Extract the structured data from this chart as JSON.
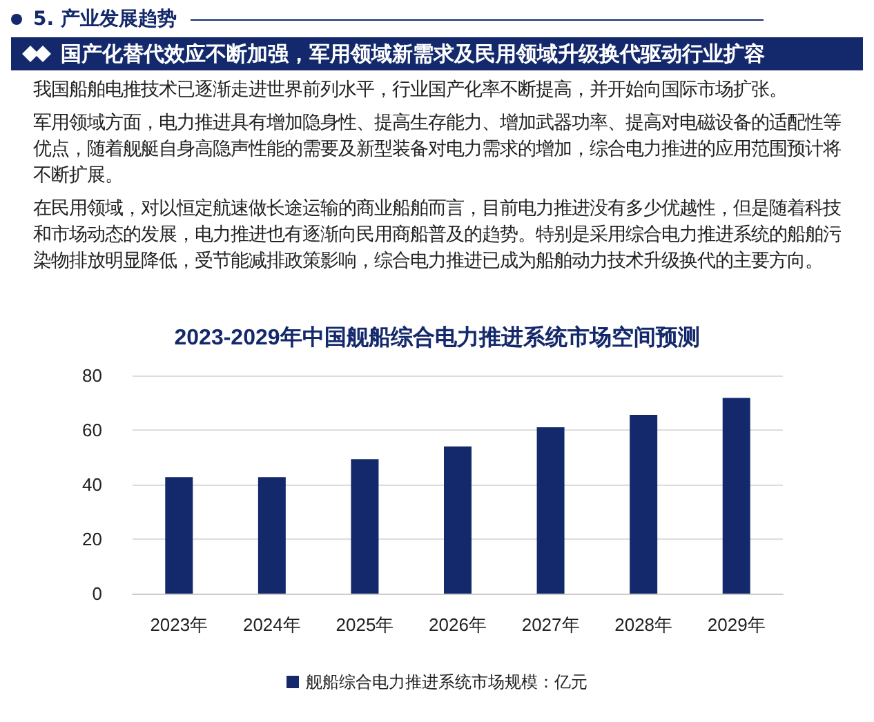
{
  "chart_data": {
    "type": "bar",
    "title": "2023-2029年中国舰船综合电力推进系统市场空间预测",
    "annotations": [
      "5. 产业发展趋势",
      "国产化替代效应不断加强，军用领域新需求及民用领域升级换代驱动行业扩容",
      "我国船舶电推技术已逐渐走进世界前列水平，行业国产化率不断提高，并开始向国际市场扩张。",
      "军用领域方面，电力推进具有增加隐身性、提高生存能力、增加武器功率、提高对电磁设备的适配性等优点，随着舰艇自身高隐声性能的需要及新型装备对电力需求的增加，综合电力推进的应用范围预计将不断扩展。",
      "在民用领域，对以恒定航速做长途运输的商业船舶而言，目前电力推进没有多少优越性，但是随着科技和市场动态的发展，电力推进也有逐渐向民用商船普及的趋势。特别是采用综合电力推进系统的船舶污染物排放明显降低，受节能减排政策影响，综合电力推进已成为船舶动力技术升级换代的主要方向。"
    ],
    "categories": [
      "2023年",
      "2024年",
      "2025年",
      "2026年",
      "2027年",
      "2028年",
      "2029年"
    ],
    "series": [
      {
        "name": "舰船综合电力推进系统市场规模：亿元",
        "color": "#14296b",
        "values": [
          42.7,
          42.7,
          49.3,
          54,
          61,
          65.6,
          71.8
        ]
      }
    ],
    "ylim": [
      0,
      80
    ],
    "yticks": [
      0,
      20,
      40,
      60,
      80
    ],
    "grid": "y",
    "legend": "bottom"
  }
}
